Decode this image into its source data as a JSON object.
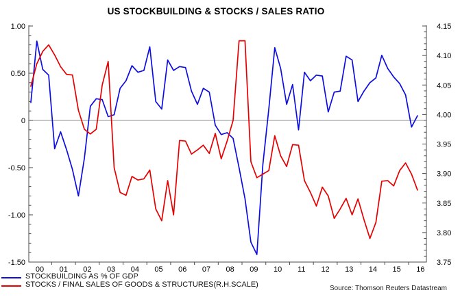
{
  "title": "US STOCKBUILDING & STOCKS / SALES RATIO",
  "source_note": "Source: Thomson Reuters Datastream",
  "legend": {
    "items": [
      {
        "label": "STOCKBUILDING AS % OF GDP",
        "color": "#0d0de0"
      },
      {
        "label": "STOCKS / FINAL SALES OF GOODS & STRUCTURES(R.H.SCALE)",
        "color": "#e60000"
      }
    ]
  },
  "colors": {
    "axis": "#4a4a4a",
    "zero_line": "#8c8c8c",
    "tick_label": "#000000",
    "blue_series": "#0d0de0",
    "red_series": "#e60000"
  },
  "chart_data": {
    "type": "line",
    "title": "US STOCKBUILDING & STOCKS / SALES RATIO",
    "x_unit": "quarterly",
    "x_start": "2000Q1",
    "x_end": "2016Q2",
    "x_tick_labels": [
      "00",
      "01",
      "02",
      "03",
      "04",
      "05",
      "06",
      "07",
      "08",
      "09",
      "10",
      "11",
      "12",
      "13",
      "14",
      "15",
      "16"
    ],
    "left_axis": {
      "range": [
        -1.5,
        1.0
      ],
      "tick_values": [
        1.0,
        0.5,
        0,
        -0.5,
        -1.0,
        -1.5
      ],
      "tick_labels": [
        "1.00",
        "0.50",
        "0",
        "-0.50",
        "-1.00",
        "-1.50"
      ],
      "minor_step": 0.1
    },
    "right_axis": {
      "range": [
        3.75,
        4.15
      ],
      "tick_values": [
        4.15,
        4.1,
        4.05,
        4.0,
        3.95,
        3.9,
        3.85,
        3.8,
        3.75
      ],
      "tick_labels": [
        "4.15",
        "4.10",
        "4.05",
        "4.00",
        "3.95",
        "3.90",
        "3.85",
        "3.80",
        "3.75"
      ],
      "minor_step": 0.01
    },
    "zero_line_left_value": 0,
    "grid": "off",
    "legend_position": "bottom-left",
    "series": [
      {
        "name": "STOCKBUILDING AS % OF GDP",
        "axis": "left",
        "color": "#0d0de0",
        "values": [
          0.19,
          0.84,
          0.54,
          0.48,
          -0.3,
          -0.12,
          -0.31,
          -0.52,
          -0.8,
          -0.4,
          0.15,
          0.23,
          0.22,
          0.04,
          0.06,
          0.34,
          0.42,
          0.58,
          0.51,
          0.53,
          0.78,
          0.2,
          0.12,
          0.64,
          0.53,
          0.57,
          0.56,
          0.31,
          0.17,
          0.34,
          0.3,
          -0.05,
          -0.15,
          -0.13,
          -0.19,
          -0.5,
          -0.83,
          -1.29,
          -1.42,
          -0.47,
          0.12,
          0.77,
          0.55,
          0.17,
          0.38,
          -0.1,
          0.51,
          0.42,
          0.48,
          0.47,
          0.09,
          0.3,
          0.31,
          0.68,
          0.64,
          0.2,
          0.31,
          0.4,
          0.45,
          0.69,
          0.55,
          0.46,
          0.39,
          0.27,
          -0.07,
          0.05
        ]
      },
      {
        "name": "STOCKS / FINAL SALES OF GOODS & STRUCTURES(R.H.SCALE)",
        "axis": "right",
        "color": "#e60000",
        "values": [
          4.048,
          4.086,
          4.107,
          4.118,
          4.101,
          4.081,
          4.068,
          4.067,
          4.007,
          3.975,
          3.967,
          3.975,
          4.05,
          4.09,
          3.91,
          3.868,
          3.863,
          3.895,
          3.889,
          3.891,
          3.906,
          3.84,
          3.82,
          3.888,
          3.83,
          3.956,
          3.955,
          3.933,
          3.94,
          3.948,
          3.934,
          3.968,
          3.925,
          3.955,
          3.99,
          4.125,
          4.125,
          3.92,
          3.893,
          3.899,
          3.905,
          3.964,
          3.93,
          3.912,
          3.949,
          3.948,
          3.888,
          3.868,
          3.845,
          3.877,
          3.862,
          3.824,
          3.84,
          3.858,
          3.83,
          3.857,
          3.822,
          3.79,
          3.817,
          3.887,
          3.888,
          3.879,
          3.905,
          3.918,
          3.899,
          3.872
        ]
      }
    ]
  }
}
